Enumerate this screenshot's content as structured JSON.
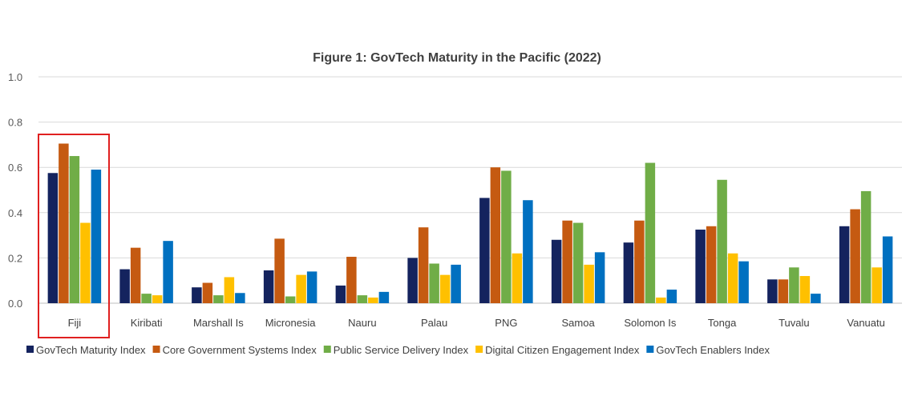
{
  "chart_data": {
    "type": "bar",
    "title": "Figure 1: GovTech Maturity in the Pacific (2022)",
    "xlabel": "",
    "ylabel": "",
    "ylim": [
      0,
      1.0
    ],
    "y_ticks": [
      "0.0",
      "0.2",
      "0.4",
      "0.6",
      "0.8",
      "1.0"
    ],
    "y_tick_values": [
      0,
      0.2,
      0.4,
      0.6,
      0.8,
      1.0
    ],
    "grid": true,
    "legend_position": "bottom",
    "highlighted_category": "Fiji",
    "categories": [
      "Fiji",
      "Kiribati",
      "Marshall Is",
      "Micronesia",
      "Nauru",
      "Palau",
      "PNG",
      "Samoa",
      "Solomon Is",
      "Tonga",
      "Tuvalu",
      "Vanuatu"
    ],
    "series": [
      {
        "name": "GovTech Maturity Index",
        "color": "#14235e",
        "values": [
          0.575,
          0.15,
          0.07,
          0.145,
          0.078,
          0.2,
          0.465,
          0.28,
          0.268,
          0.325,
          0.105,
          0.34
        ]
      },
      {
        "name": "Core Government Systems Index",
        "color": "#c55a11",
        "values": [
          0.705,
          0.245,
          0.09,
          0.285,
          0.205,
          0.335,
          0.6,
          0.365,
          0.365,
          0.34,
          0.105,
          0.415
        ]
      },
      {
        "name": "Public Service Delivery Index",
        "color": "#70ad47",
        "values": [
          0.65,
          0.042,
          0.035,
          0.03,
          0.035,
          0.175,
          0.585,
          0.355,
          0.62,
          0.545,
          0.158,
          0.495
        ]
      },
      {
        "name": "Digital Citizen Engagement Index",
        "color": "#ffc000",
        "values": [
          0.355,
          0.035,
          0.115,
          0.125,
          0.025,
          0.125,
          0.22,
          0.17,
          0.025,
          0.22,
          0.12,
          0.158
        ]
      },
      {
        "name": "GovTech Enablers Index",
        "color": "#0070c0",
        "values": [
          0.59,
          0.275,
          0.045,
          0.14,
          0.05,
          0.17,
          0.455,
          0.225,
          0.06,
          0.185,
          0.042,
          0.295
        ]
      }
    ]
  }
}
